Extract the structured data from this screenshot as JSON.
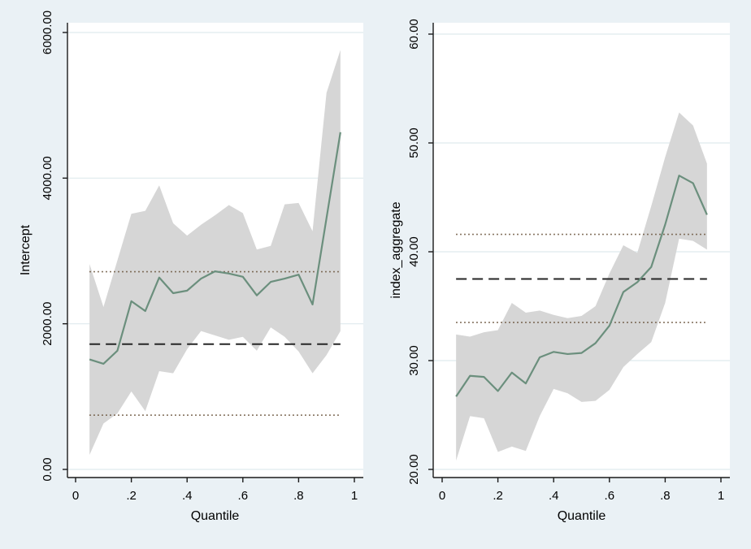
{
  "figure": {
    "background_color": "#eaf1f5",
    "plot_background": "#ffffff",
    "grid_color": "#dfeaee",
    "axis_color": "#1a1a1a",
    "band_color": "#d6d6d6",
    "line_color": "#6b8f7d",
    "dashed_color": "#262626",
    "dotted_color": "#6a543c"
  },
  "chart_data": [
    {
      "type": "line",
      "panel": "left",
      "title": "",
      "xlabel": "Quantile",
      "ylabel": "Intercept",
      "xlim": [
        0,
        1
      ],
      "ylim": [
        0,
        6000
      ],
      "grid": true,
      "legend_position": "none",
      "xticks": {
        "values": [
          0,
          0.2,
          0.4,
          0.6,
          0.8,
          1
        ],
        "labels": [
          "0",
          ".2",
          ".4",
          ".6",
          ".8",
          "1"
        ]
      },
      "yticks": {
        "values": [
          0,
          2000,
          4000,
          6000
        ],
        "labels": [
          "0.00",
          "2000.00",
          "4000.00",
          "6000.00"
        ]
      },
      "x": [
        0.05,
        0.1,
        0.15,
        0.2,
        0.25,
        0.3,
        0.35,
        0.4,
        0.45,
        0.5,
        0.55,
        0.6,
        0.65,
        0.7,
        0.75,
        0.8,
        0.85,
        0.9,
        0.95
      ],
      "series": [
        {
          "name": "quantile_estimate",
          "values": [
            1510,
            1450,
            1630,
            2310,
            2175,
            2635,
            2420,
            2455,
            2620,
            2720,
            2690,
            2645,
            2390,
            2575,
            2620,
            2675,
            2265,
            3450,
            4630
          ]
        },
        {
          "name": "ci_lower",
          "values": [
            200,
            630,
            770,
            1070,
            800,
            1350,
            1320,
            1650,
            1900,
            1840,
            1780,
            1820,
            1630,
            1950,
            1820,
            1620,
            1320,
            1570,
            1900
          ]
        },
        {
          "name": "ci_upper",
          "values": [
            2820,
            2230,
            2870,
            3510,
            3550,
            3900,
            3380,
            3210,
            3360,
            3490,
            3630,
            3520,
            3020,
            3070,
            3640,
            3660,
            3270,
            5170,
            5760
          ]
        }
      ],
      "reference_lines": {
        "ols_estimate": 1720,
        "ols_ci_upper": 2715,
        "ols_ci_lower": 745
      }
    },
    {
      "type": "line",
      "panel": "right",
      "title": "",
      "xlabel": "Quantile",
      "ylabel": "index_aggregate",
      "xlim": [
        0,
        1
      ],
      "ylim": [
        20,
        60
      ],
      "grid": true,
      "legend_position": "none",
      "xticks": {
        "values": [
          0,
          0.2,
          0.4,
          0.6,
          0.8,
          1
        ],
        "labels": [
          "0",
          ".2",
          ".4",
          ".6",
          ".8",
          "1"
        ]
      },
      "yticks": {
        "values": [
          20,
          30,
          40,
          50,
          60
        ],
        "labels": [
          "20.00",
          "30.00",
          "40.00",
          "50.00",
          "60.00"
        ]
      },
      "x": [
        0.05,
        0.1,
        0.15,
        0.2,
        0.25,
        0.3,
        0.35,
        0.4,
        0.45,
        0.5,
        0.55,
        0.6,
        0.65,
        0.7,
        0.75,
        0.8,
        0.85,
        0.9,
        0.95
      ],
      "series": [
        {
          "name": "quantile_estimate",
          "values": [
            26.7,
            28.6,
            28.5,
            27.2,
            28.9,
            27.9,
            30.3,
            30.8,
            30.6,
            30.7,
            31.6,
            33.2,
            36.3,
            37.2,
            38.6,
            42.5,
            47.0,
            46.3,
            43.4
          ]
        },
        {
          "name": "ci_lower",
          "values": [
            20.8,
            24.9,
            24.7,
            21.6,
            22.1,
            21.7,
            24.9,
            27.4,
            27.0,
            26.2,
            26.3,
            27.3,
            29.4,
            30.6,
            31.7,
            35.3,
            41.2,
            41.0,
            40.2
          ]
        },
        {
          "name": "ci_upper",
          "values": [
            32.4,
            32.2,
            32.6,
            32.8,
            35.3,
            34.4,
            34.6,
            34.2,
            33.9,
            34.1,
            35.0,
            38.0,
            40.6,
            39.9,
            44.2,
            48.7,
            52.8,
            51.6,
            48.1
          ]
        }
      ],
      "reference_lines": {
        "ols_estimate": 37.5,
        "ols_ci_upper": 41.6,
        "ols_ci_lower": 33.5
      }
    }
  ]
}
